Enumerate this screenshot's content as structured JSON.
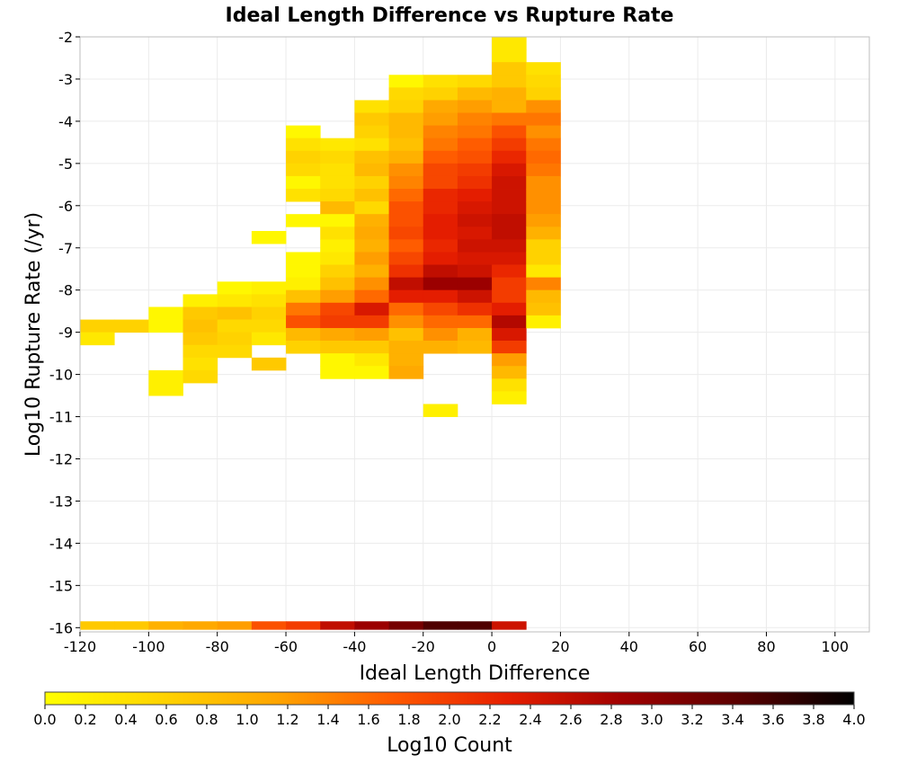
{
  "chart_data": {
    "type": "heatmap",
    "title": "Ideal Length Difference vs Rupture Rate",
    "xlabel": "Ideal Length Difference",
    "ylabel": "Log10 Rupture Rate (/yr)",
    "xlim": [
      -120,
      110
    ],
    "ylim": [
      -16.1,
      -2
    ],
    "xticks": [
      -120,
      -100,
      -80,
      -60,
      -40,
      -20,
      0,
      20,
      40,
      60,
      80,
      100
    ],
    "xtick_labels": [
      "-120",
      "-100",
      "-80",
      "-60",
      "-40",
      "-20",
      "0",
      "20",
      "40",
      "60",
      "80",
      "100"
    ],
    "yticks": [
      -2,
      -3,
      -4,
      -5,
      -6,
      -7,
      -8,
      -9,
      -10,
      -11,
      -12,
      -13,
      -14,
      -15,
      -16
    ],
    "ytick_labels": [
      "-2",
      "-3",
      "-4",
      "-5",
      "-6",
      "-7",
      "-8",
      "-9",
      "-10",
      "-11",
      "-12",
      "-13",
      "-14",
      "-15",
      "-16"
    ],
    "grid": true,
    "x_bin_width": 10,
    "y_bin_height": 0.3,
    "value_label": "Log10 Count",
    "colorbar": {
      "min": 0.0,
      "max": 4.0,
      "ticks": [
        "0.0",
        "0.2",
        "0.4",
        "0.6",
        "0.8",
        "1.0",
        "1.2",
        "1.4",
        "1.6",
        "1.8",
        "2.0",
        "2.2",
        "2.4",
        "2.6",
        "2.8",
        "3.0",
        "3.2",
        "3.4",
        "3.6",
        "3.8",
        "4.0"
      ],
      "label": "Log10 Count",
      "colors": [
        "#ffff00",
        "#ffd400",
        "#ffa500",
        "#ff5a00",
        "#e61e00",
        "#a00000",
        "#5a0000",
        "#000000"
      ]
    },
    "columns": [
      {
        "x": -120,
        "y_top": -8.7,
        "values": [
          0.6,
          0.3
        ]
      },
      {
        "x": -110,
        "y_top": -8.7,
        "values": [
          0.6
        ]
      },
      {
        "x": -100,
        "y_top": -8.4,
        "values": [
          0.1,
          0.1,
          0,
          0,
          0,
          0.2,
          0.2
        ]
      },
      {
        "x": -90,
        "y_top": -8.1,
        "values": [
          0.2,
          0.7,
          0.8,
          0.7,
          0.5,
          0.4,
          0.5
        ]
      },
      {
        "x": -80,
        "y_top": -7.8,
        "values": [
          0.1,
          0.3,
          0.8,
          0.5,
          0.6,
          0.5
        ]
      },
      {
        "x": -70,
        "y_top": -6.6,
        "values": [
          0.1,
          0,
          0,
          0,
          0.2,
          0.4,
          0.6,
          0.5,
          0.3,
          0,
          0.7
        ]
      },
      {
        "x": -60,
        "y_top": -4.1,
        "values": [
          0.1,
          0.4,
          0.6,
          0.5,
          0.1,
          0.4,
          0,
          0.1,
          0,
          0,
          0.1,
          0.1,
          0.2,
          0.8,
          1.5,
          1.8,
          0.9,
          0.6
        ]
      },
      {
        "x": -50,
        "y_top": -4.4,
        "values": [
          0.3,
          0.5,
          0.4,
          0.4,
          0.5,
          0.9,
          0.1,
          0.4,
          0.2,
          0.3,
          0.6,
          0.8,
          1.2,
          1.9,
          2.0,
          1.1,
          0.7,
          0.1,
          0.1
        ]
      },
      {
        "x": -40,
        "y_top": -3.5,
        "values": [
          0.4,
          0.7,
          0.6,
          0.4,
          0.8,
          0.9,
          0.6,
          0.8,
          0.5,
          1.0,
          1.1,
          1.0,
          1.2,
          1.0,
          1.3,
          1.6,
          2.4,
          2.0,
          1.2,
          0.7,
          0.3,
          0.1
        ]
      },
      {
        "x": -30,
        "y_top": -2.9,
        "values": [
          0.1,
          0.5,
          0.6,
          0.9,
          0.9,
          0.8,
          1.0,
          1.3,
          1.4,
          1.6,
          1.8,
          1.8,
          1.9,
          1.7,
          1.9,
          2.1,
          2.6,
          2.3,
          1.6,
          1.3,
          0.8,
          1.0,
          1.0,
          1.1
        ]
      },
      {
        "x": -20,
        "y_top": -2.9,
        "values": [
          0.4,
          0.6,
          1.1,
          1.2,
          1.4,
          1.5,
          1.7,
          1.9,
          1.9,
          2.2,
          2.2,
          2.3,
          2.3,
          2.2,
          2.3,
          2.6,
          2.9,
          2.3,
          1.9,
          1.6,
          1.3,
          1.0,
          0,
          0,
          0,
          0,
          0.2
        ]
      },
      {
        "x": -10,
        "y_top": -2.9,
        "values": [
          0.5,
          0.9,
          1.2,
          1.4,
          1.5,
          1.7,
          1.8,
          2.0,
          2.1,
          2.3,
          2.4,
          2.5,
          2.4,
          2.5,
          2.4,
          2.5,
          2.9,
          2.5,
          2.1,
          1.6,
          1.0,
          0.9
        ]
      },
      {
        "x": 0,
        "y_top": -2.0,
        "values": [
          0.3,
          0.3,
          0.7,
          0.7,
          1.0,
          1.0,
          1.5,
          1.8,
          2.0,
          2.2,
          2.4,
          2.5,
          2.5,
          2.5,
          2.6,
          2.6,
          2.5,
          2.4,
          2.2,
          2.0,
          2.0,
          2.3,
          2.7,
          2.4,
          2.0,
          1.2,
          0.9,
          0.4,
          0.2
        ]
      },
      {
        "x": 10,
        "y_top": -2.6,
        "values": [
          0.4,
          0.5,
          0.6,
          1.3,
          1.5,
          1.3,
          1.5,
          1.6,
          1.5,
          1.3,
          1.3,
          1.3,
          1.2,
          1.0,
          0.6,
          0.6,
          0.3,
          1.4,
          0.9,
          0.8,
          0.2
        ]
      }
    ],
    "bottom_row": {
      "y": -16.0,
      "x": [
        -120,
        -110,
        -100,
        -90,
        -80,
        -70,
        -60,
        -50,
        -40,
        -30,
        -20,
        -10,
        0
      ],
      "values": [
        0.7,
        0.7,
        1.0,
        1.1,
        1.2,
        1.8,
        2.0,
        2.6,
        2.9,
        3.2,
        3.5,
        3.5,
        2.5
      ]
    }
  }
}
